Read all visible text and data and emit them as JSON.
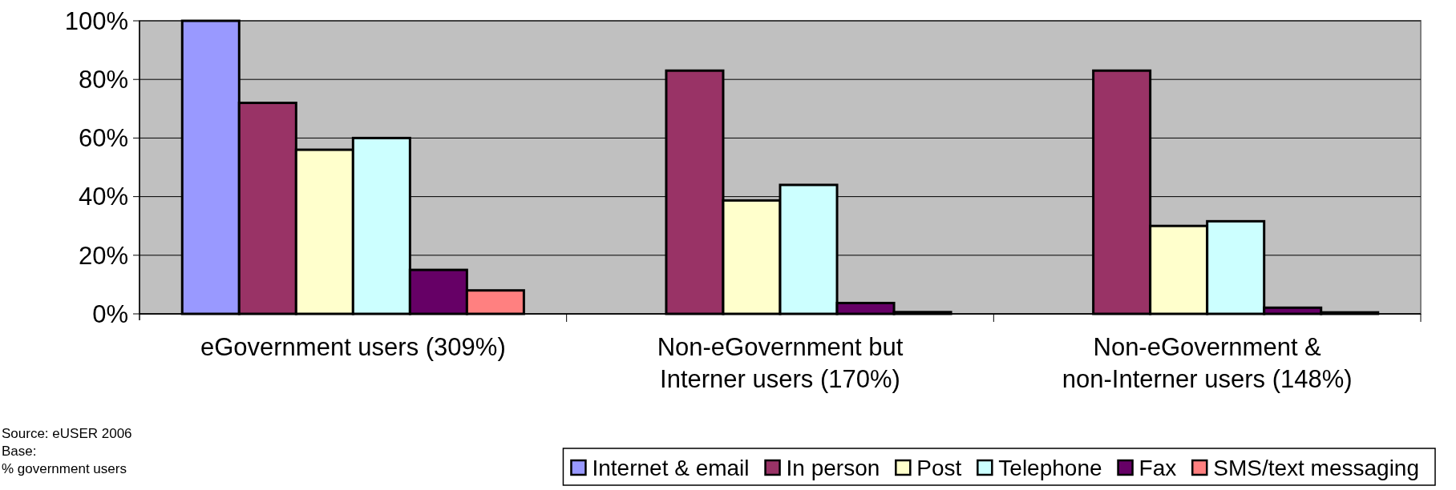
{
  "chart_data": {
    "type": "bar",
    "categories": [
      "eGovernment users (309%)",
      "Non-eGovernment but Interner users (170%)",
      "Non-eGovernment & non-Interner users (148%)"
    ],
    "series": [
      {
        "name": "Internet & email",
        "color": "#9999ff",
        "values": [
          100,
          null,
          null
        ]
      },
      {
        "name": "In person",
        "color": "#993366",
        "values": [
          72,
          83,
          83
        ]
      },
      {
        "name": "Post",
        "color": "#ffffcc",
        "values": [
          56,
          38.7,
          30
        ]
      },
      {
        "name": "Telephone",
        "color": "#ccffff",
        "values": [
          60,
          44,
          31.6
        ]
      },
      {
        "name": "Fax",
        "color": "#660066",
        "values": [
          15,
          3.7,
          2.1
        ]
      },
      {
        "name": "SMS/text messaging",
        "color": "#ff8080",
        "values": [
          8,
          0.6,
          0.5
        ]
      }
    ],
    "ylim": [
      0,
      100
    ],
    "yticks": [
      {
        "value": 0,
        "label": "0%"
      },
      {
        "value": 20,
        "label": "20%"
      },
      {
        "value": 40,
        "label": "40%"
      },
      {
        "value": 60,
        "label": "60%"
      },
      {
        "value": 80,
        "label": "80%"
      },
      {
        "value": 100,
        "label": "100%"
      }
    ],
    "grid": "y",
    "legend": "bottom",
    "annotations": [
      "Source: eUSER 2006",
      "Base:",
      "% government users"
    ]
  }
}
